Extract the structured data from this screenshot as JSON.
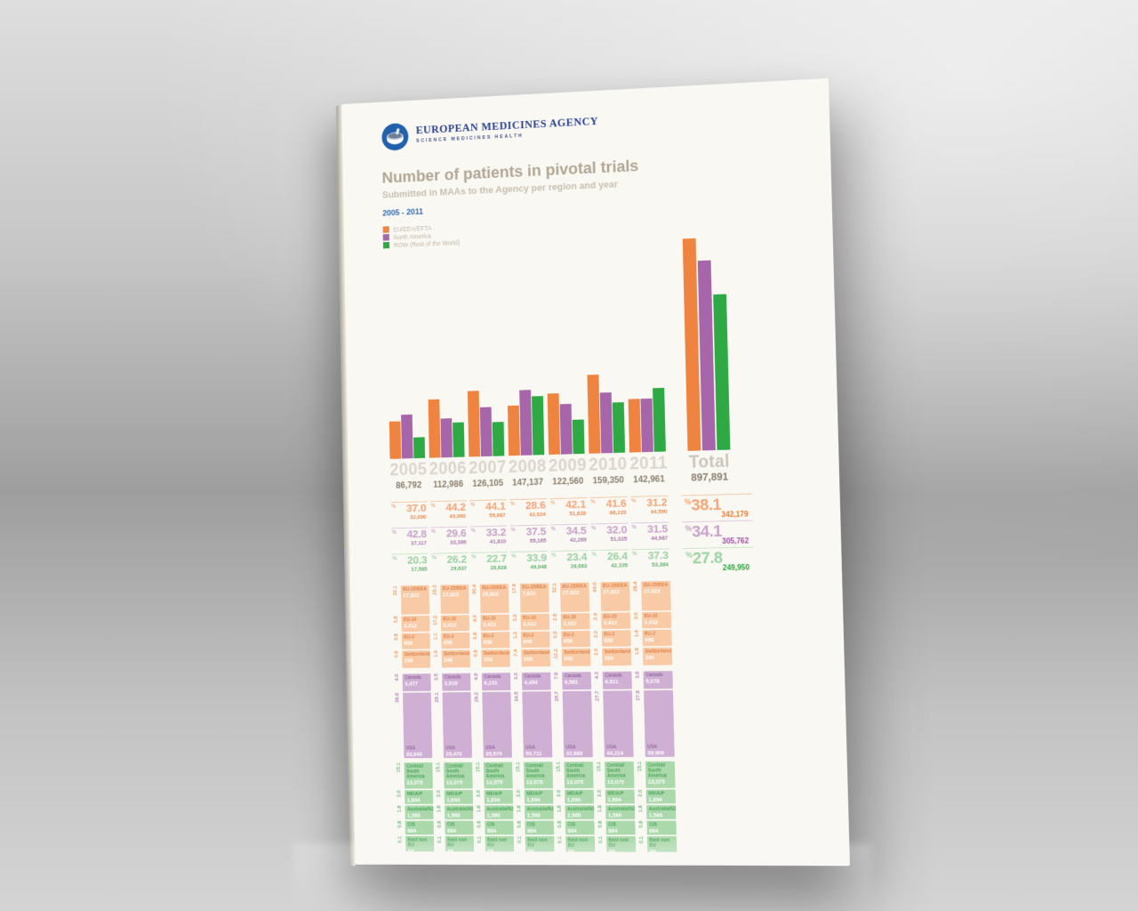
{
  "poster": {
    "agency_line1": "EUROPEAN MEDICINES AGENCY",
    "agency_line2": "SCIENCE MEDICINES HEALTH",
    "title": "Number of patients in pivotal trials",
    "subtitle": "Submitted in MAAs to the Agency per region and year",
    "period": "2005 - 2011"
  },
  "symbols": {
    "percent": "%"
  },
  "chart_data": {
    "type": "bar",
    "title": "Number of patients in pivotal trials",
    "subtitle": "Submitted in MAAs to the Agency per region and year",
    "categories": [
      "2005",
      "2006",
      "2007",
      "2008",
      "2009",
      "2010",
      "2011",
      "Total"
    ],
    "series": [
      {
        "name": "EU/EEA/EFTA",
        "color": "#ef8440",
        "values": [
          32090,
          49960,
          55667,
          42024,
          51628,
          66220,
          44590,
          342179
        ]
      },
      {
        "name": "North America",
        "color": "#a766aa",
        "values": [
          37117,
          33389,
          41810,
          55165,
          42269,
          51025,
          44987,
          305762
        ]
      },
      {
        "name": "ROW (Rest of the World)",
        "color": "#2fa944",
        "values": [
          17585,
          29637,
          28628,
          49948,
          28663,
          42105,
          53384,
          249950
        ]
      }
    ],
    "category_totals": [
      86792,
      112986,
      126105,
      147137,
      122560,
      159350,
      142961,
      897891
    ],
    "legend_position": "top-left",
    "grid": false
  },
  "category_totals_display": [
    "86,792",
    "112,986",
    "126,105",
    "147,137",
    "122,560",
    "159,350",
    "142,961",
    "897,891"
  ],
  "pct_rows": [
    {
      "region": "EU/EEA/EFTA",
      "cells": [
        {
          "pct": "37.0",
          "count": "32,090"
        },
        {
          "pct": "44.2",
          "count": "49,960"
        },
        {
          "pct": "44.1",
          "count": "55,667"
        },
        {
          "pct": "28.6",
          "count": "42,024"
        },
        {
          "pct": "42.1",
          "count": "51,628"
        },
        {
          "pct": "41.6",
          "count": "66,220"
        },
        {
          "pct": "31.2",
          "count": "44,590"
        }
      ],
      "total": {
        "pct": "38.1",
        "count": "342,179"
      }
    },
    {
      "region": "North America",
      "cells": [
        {
          "pct": "42.8",
          "count": "37,117"
        },
        {
          "pct": "29.6",
          "count": "33,389"
        },
        {
          "pct": "33.2",
          "count": "41,810"
        },
        {
          "pct": "37.5",
          "count": "55,165"
        },
        {
          "pct": "34.5",
          "count": "42,269"
        },
        {
          "pct": "32.0",
          "count": "51,025"
        },
        {
          "pct": "31.5",
          "count": "44,987"
        }
      ],
      "total": {
        "pct": "34.1",
        "count": "305,762"
      }
    },
    {
      "region": "ROW (Rest of the World)",
      "cells": [
        {
          "pct": "20.3",
          "count": "17,585"
        },
        {
          "pct": "26.2",
          "count": "29,637"
        },
        {
          "pct": "22.7",
          "count": "28,628"
        },
        {
          "pct": "33.9",
          "count": "49,948"
        },
        {
          "pct": "23.4",
          "count": "28,663"
        },
        {
          "pct": "26.4",
          "count": "42,105"
        },
        {
          "pct": "37.3",
          "count": "53,384"
        }
      ],
      "total": {
        "pct": "27.8",
        "count": "249,950"
      }
    }
  ],
  "breakdown": {
    "columns": [
      {
        "year": "2005",
        "eu": [
          {
            "label": "EU-15/EEA",
            "value": "27,822",
            "pct": "32.1"
          },
          {
            "label": "EU-10",
            "value": "3,412",
            "pct": "3.9"
          },
          {
            "label": "EU-2",
            "value": "658",
            "pct": "0.8"
          },
          {
            "label": "Switzerland",
            "value": "200",
            "pct": "0.8"
          }
        ],
        "north_america": [
          {
            "label": "Canada",
            "value": "3,477",
            "pct": "4.0"
          },
          {
            "label": "USA",
            "value": "33,640",
            "pct": "38.8"
          }
        ],
        "row": [
          {
            "label": "Central/ South America",
            "value": "13,075",
            "pct": "15.1"
          },
          {
            "label": "ME/A/P",
            "value": "1,694",
            "pct": "2.0"
          },
          {
            "label": "Australia/NZ",
            "value": "1,560",
            "pct": "1.8"
          },
          {
            "label": "CIS",
            "value": "664",
            "pct": "0.8"
          },
          {
            "label": "East non EU",
            "value": "69",
            "pct": "0.1"
          }
        ]
      },
      {
        "year": "2006",
        "eu": [
          {
            "label": "EU-15/EEA",
            "value": "17,822",
            "pct": "26.3"
          },
          {
            "label": "EU-10",
            "value": "3,412",
            "pct": "17.2"
          },
          {
            "label": "EU-2",
            "value": "658",
            "pct": "1.1"
          },
          {
            "label": "Switzerland",
            "value": "240",
            "pct": "1.0"
          }
        ],
        "north_america": [
          {
            "label": "Canada",
            "value": "3,919",
            "pct": "3.5"
          },
          {
            "label": "USA",
            "value": "29,470",
            "pct": "26.1"
          }
        ],
        "row": [
          {
            "label": "Central/ South America",
            "value": "13,075",
            "pct": "15.1"
          },
          {
            "label": "ME/A/P",
            "value": "1,694",
            "pct": "2.0"
          },
          {
            "label": "Australia/NZ",
            "value": "1,560",
            "pct": "1.8"
          },
          {
            "label": "CIS",
            "value": "664",
            "pct": "0.8"
          },
          {
            "label": "East non EU",
            "value": "69",
            "pct": "0.1"
          }
        ]
      },
      {
        "year": "2007",
        "eu": [
          {
            "label": "EU-15/EEA",
            "value": "20,822",
            "pct": "30.4"
          },
          {
            "label": "EU-10",
            "value": "3,412",
            "pct": "4.0"
          },
          {
            "label": "EU-2",
            "value": "658",
            "pct": "0.8"
          },
          {
            "label": "Switzerland",
            "value": "200",
            "pct": "0.8"
          }
        ],
        "north_america": [
          {
            "label": "Canada",
            "value": "6,231",
            "pct": "4.9"
          },
          {
            "label": "USA",
            "value": "35,579",
            "pct": "28.2"
          }
        ],
        "row": [
          {
            "label": "Central/ South America",
            "value": "13,075",
            "pct": "15.1"
          },
          {
            "label": "ME/A/P",
            "value": "1,694",
            "pct": "2.0"
          },
          {
            "label": "Australia/NZ",
            "value": "1,560",
            "pct": "1.8"
          },
          {
            "label": "CIS",
            "value": "664",
            "pct": "0.8"
          },
          {
            "label": "East non EU",
            "value": "69",
            "pct": "0.1"
          }
        ]
      },
      {
        "year": "2008",
        "eu": [
          {
            "label": "EU-15/EEA",
            "value": "7,822",
            "pct": "17.8"
          },
          {
            "label": "EU-10",
            "value": "3,412",
            "pct": "3.2"
          },
          {
            "label": "EU-2",
            "value": "658",
            "pct": "1.3"
          },
          {
            "label": "Switzerland",
            "value": "200",
            "pct": "7.4"
          }
        ],
        "north_america": [
          {
            "label": "Canada",
            "value": "4,454",
            "pct": "3.0"
          },
          {
            "label": "USA",
            "value": "50,711",
            "pct": "34.5"
          }
        ],
        "row": [
          {
            "label": "Central/ South America",
            "value": "13,075",
            "pct": "15.1"
          },
          {
            "label": "ME/A/P",
            "value": "1,694",
            "pct": "2.0"
          },
          {
            "label": "Australia/NZ",
            "value": "1,560",
            "pct": "1.8"
          },
          {
            "label": "CIS",
            "value": "664",
            "pct": "0.8"
          },
          {
            "label": "East non EU",
            "value": "69",
            "pct": "0.1"
          }
        ]
      },
      {
        "year": "2009",
        "eu": [
          {
            "label": "EU-15/EEA",
            "value": "27,822",
            "pct": "32.1"
          },
          {
            "label": "EU-10",
            "value": "3,412",
            "pct": "2.8"
          },
          {
            "label": "EU-2",
            "value": "658",
            "pct": "0.9"
          },
          {
            "label": "Switzerland",
            "value": "200",
            "pct": "12.2"
          }
        ],
        "north_america": [
          {
            "label": "Canada",
            "value": "9,581",
            "pct": "7.8"
          },
          {
            "label": "USA",
            "value": "32,688",
            "pct": "26.7"
          }
        ],
        "row": [
          {
            "label": "Central/ South America",
            "value": "13,075",
            "pct": "15.1"
          },
          {
            "label": "ME/A/P",
            "value": "1,694",
            "pct": "2.0"
          },
          {
            "label": "Australia/NZ",
            "value": "1,560",
            "pct": "1.8"
          },
          {
            "label": "CIS",
            "value": "664",
            "pct": "0.8"
          },
          {
            "label": "East non EU",
            "value": "69",
            "pct": "0.1"
          }
        ]
      },
      {
        "year": "2010",
        "eu": [
          {
            "label": "EU-15/EEA",
            "value": "27,822",
            "pct": "44.0"
          },
          {
            "label": "EU-10",
            "value": "3,412",
            "pct": "2.4"
          },
          {
            "label": "EU-2",
            "value": "658",
            "pct": "2.2"
          },
          {
            "label": "Switzerland",
            "value": "200",
            "pct": "2.0"
          }
        ],
        "north_america": [
          {
            "label": "Canada",
            "value": "6,811",
            "pct": "4.3"
          },
          {
            "label": "USA",
            "value": "44,214",
            "pct": "27.7"
          }
        ],
        "row": [
          {
            "label": "Central/ South America",
            "value": "13,075",
            "pct": "15.1"
          },
          {
            "label": "ME/A/P",
            "value": "1,694",
            "pct": "2.0"
          },
          {
            "label": "Australia/NZ",
            "value": "1,560",
            "pct": "1.8"
          },
          {
            "label": "CIS",
            "value": "664",
            "pct": "0.8"
          },
          {
            "label": "East non EU",
            "value": "69",
            "pct": "0.1"
          }
        ]
      },
      {
        "year": "2011",
        "eu": [
          {
            "label": "EU-15/EEA",
            "value": "27,822",
            "pct": "28.4"
          },
          {
            "label": "EU-10",
            "value": "3,412",
            "pct": "3.0"
          },
          {
            "label": "EU-2",
            "value": "658",
            "pct": "1.4"
          },
          {
            "label": "Switzerland",
            "value": "200",
            "pct": "1.8"
          }
        ],
        "north_america": [
          {
            "label": "Canada",
            "value": "5,078",
            "pct": "3.6"
          },
          {
            "label": "USA",
            "value": "39,909",
            "pct": "27.9"
          }
        ],
        "row": [
          {
            "label": "Central/ South America",
            "value": "13,075",
            "pct": "15.1"
          },
          {
            "label": "ME/A/P",
            "value": "1,694",
            "pct": "2.0"
          },
          {
            "label": "Australia/NZ",
            "value": "1,560",
            "pct": "1.8"
          },
          {
            "label": "CIS",
            "value": "664",
            "pct": "0.8"
          },
          {
            "label": "East non EU",
            "value": "69",
            "pct": "0.1"
          }
        ]
      }
    ]
  }
}
